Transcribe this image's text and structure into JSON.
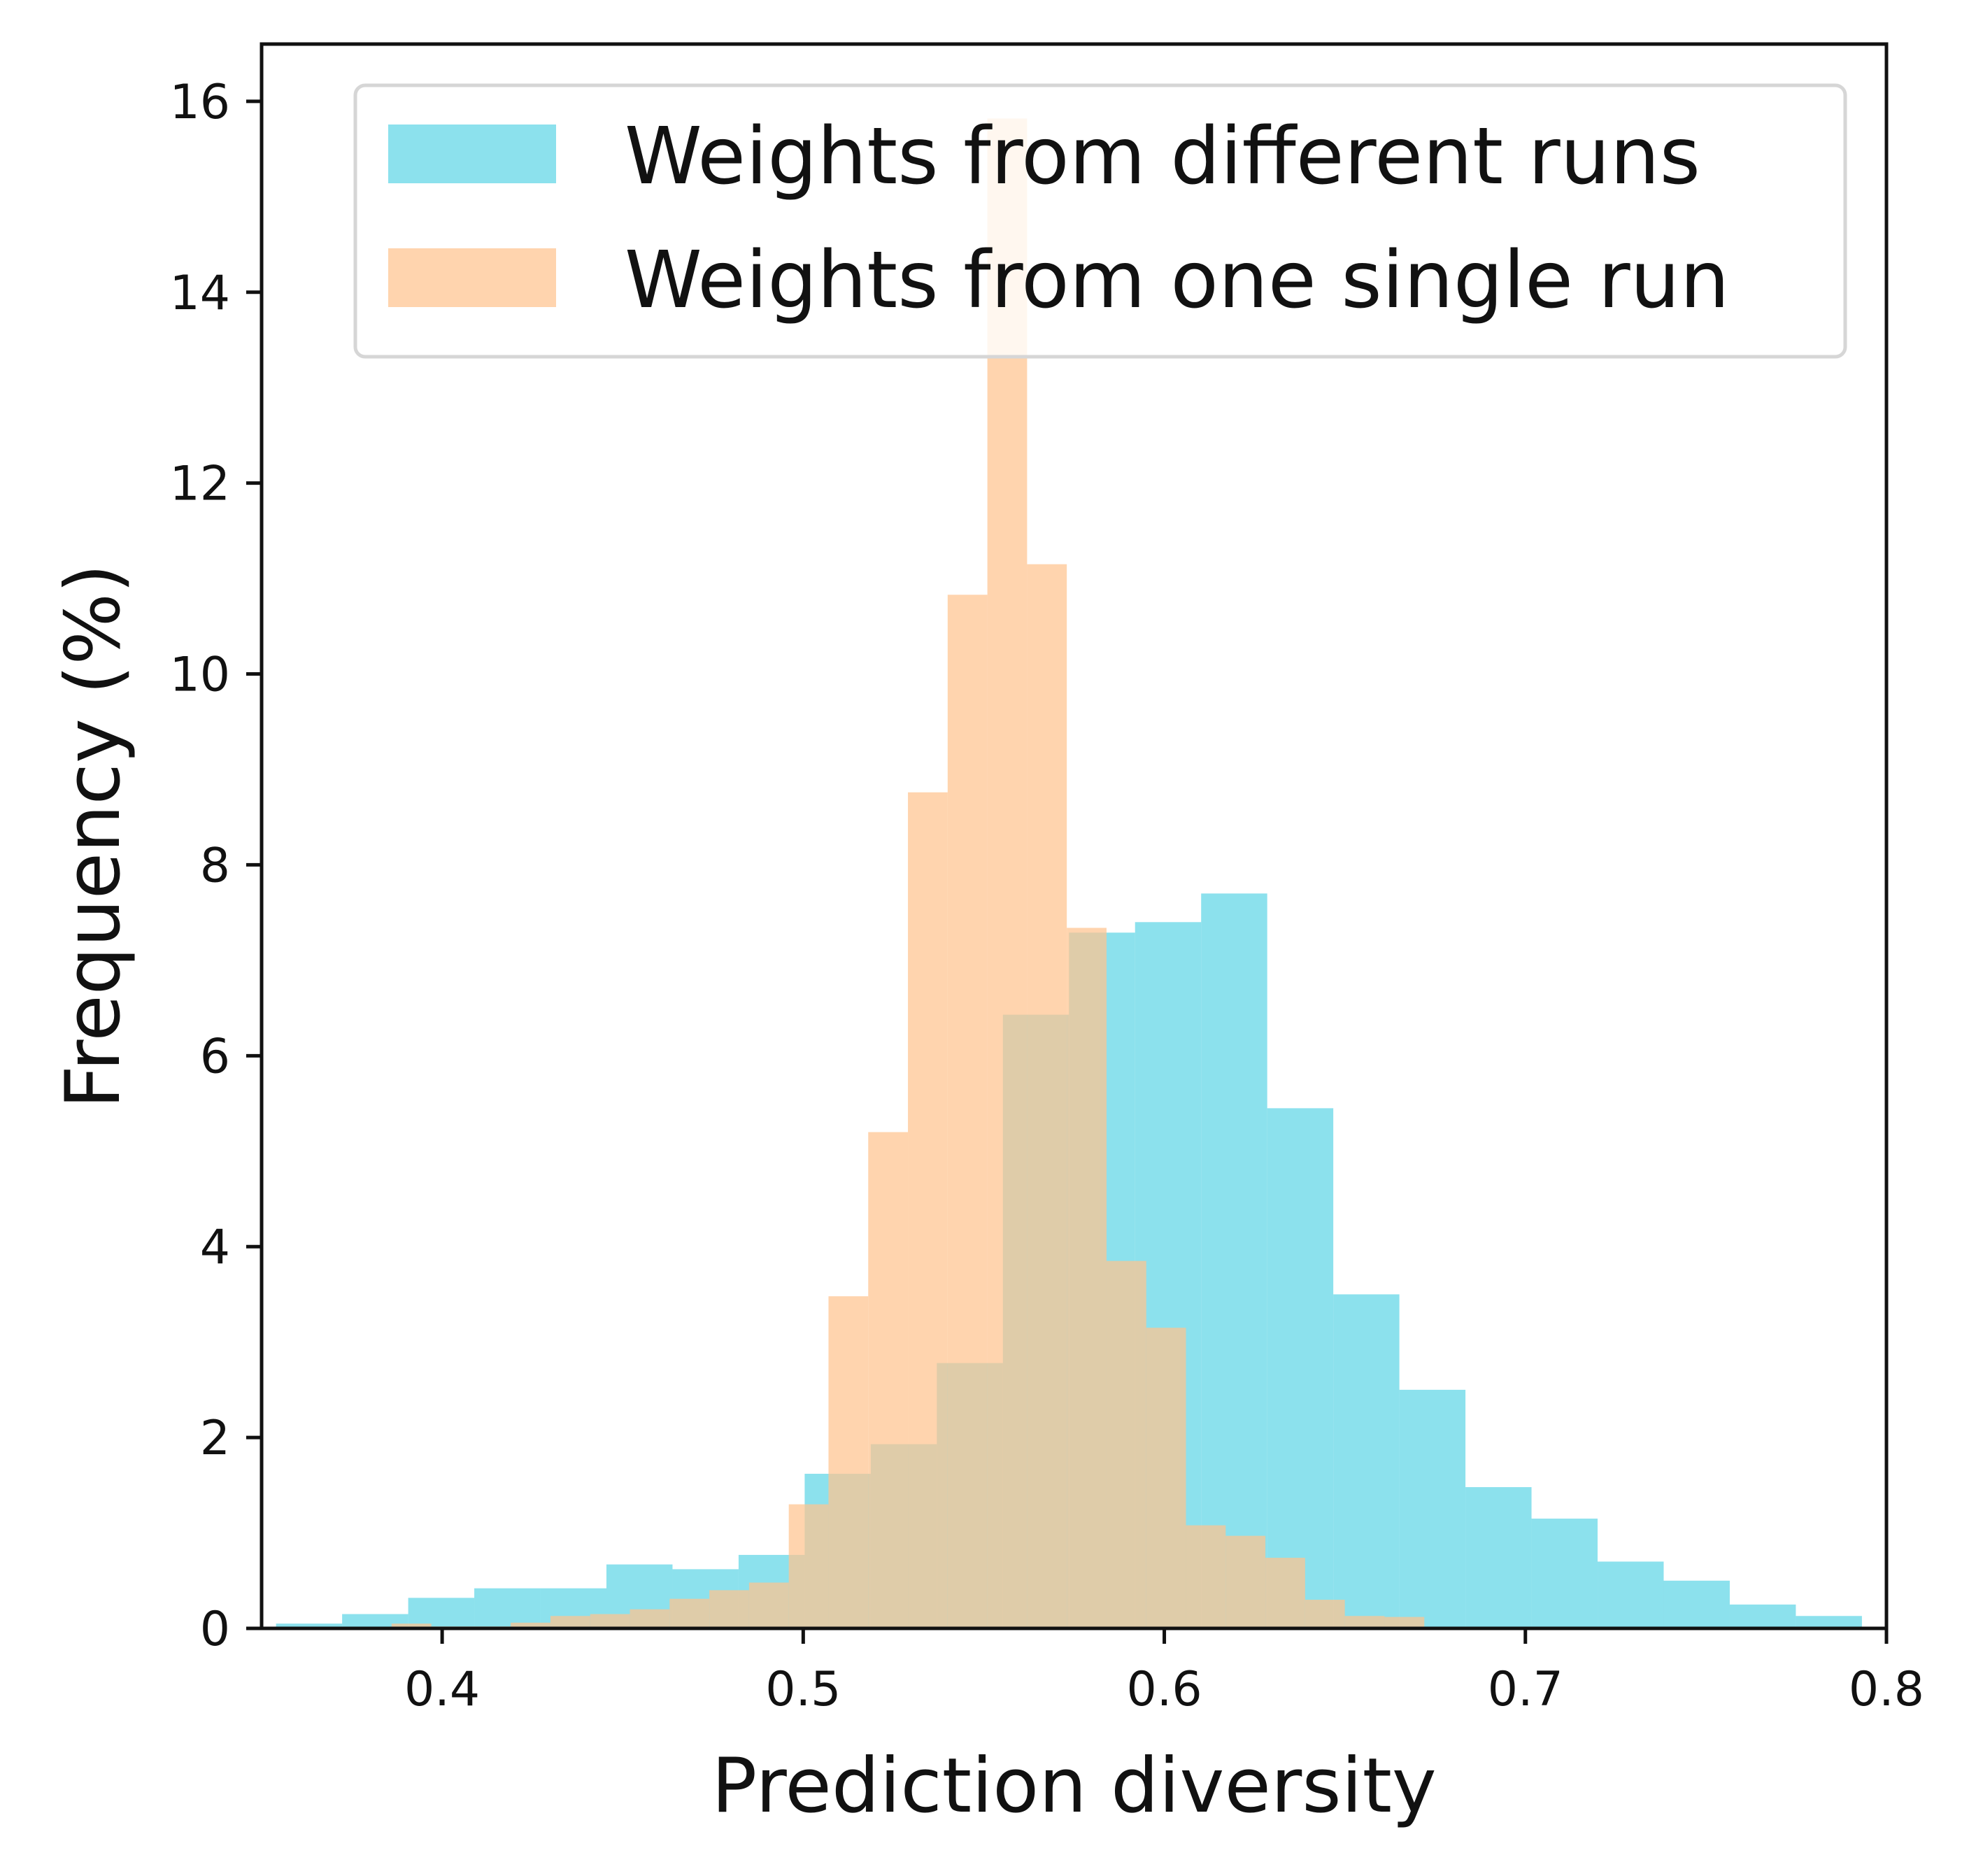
{
  "chart_data": {
    "type": "histogram",
    "xlabel": "Prediction diversity",
    "ylabel": "Frequency (%)",
    "xlim": [
      0.35,
      0.8
    ],
    "ylim": [
      0,
      16.6
    ],
    "xticks": [
      0.4,
      0.5,
      0.6,
      0.7,
      0.8
    ],
    "xtick_labels": [
      "0.4",
      "0.5",
      "0.6",
      "0.7",
      "0.8"
    ],
    "yticks": [
      0,
      2,
      4,
      6,
      8,
      10,
      12,
      14,
      16
    ],
    "ytick_labels": [
      "0",
      "2",
      "4",
      "6",
      "8",
      "10",
      "12",
      "14",
      "16"
    ],
    "grid": false,
    "legend_position": "top-right",
    "series": [
      {
        "name": "Weights from different runs",
        "color": "#5fd6e6",
        "opacity": 0.72,
        "bin_start": 0.354,
        "bin_width": 0.0183,
        "values": [
          0.05,
          0.15,
          0.32,
          0.42,
          0.42,
          0.67,
          0.62,
          0.77,
          1.62,
          1.93,
          2.78,
          6.43,
          7.29,
          7.4,
          7.7,
          5.45,
          3.5,
          2.5,
          1.48,
          1.15,
          0.7,
          0.5,
          0.25,
          0.13
        ]
      },
      {
        "name": "Weights from one single run",
        "color": "#ffc48f",
        "opacity": 0.72,
        "bin_start": 0.375,
        "bin_width": 0.011,
        "values": [
          0.01,
          0.05,
          0.02,
          0.02,
          0.06,
          0.13,
          0.15,
          0.2,
          0.31,
          0.4,
          0.48,
          1.3,
          3.48,
          5.2,
          8.76,
          10.83,
          15.82,
          11.15,
          7.34,
          3.85,
          3.15,
          1.08,
          0.97,
          0.74,
          0.3,
          0.13,
          0.12
        ]
      }
    ]
  }
}
